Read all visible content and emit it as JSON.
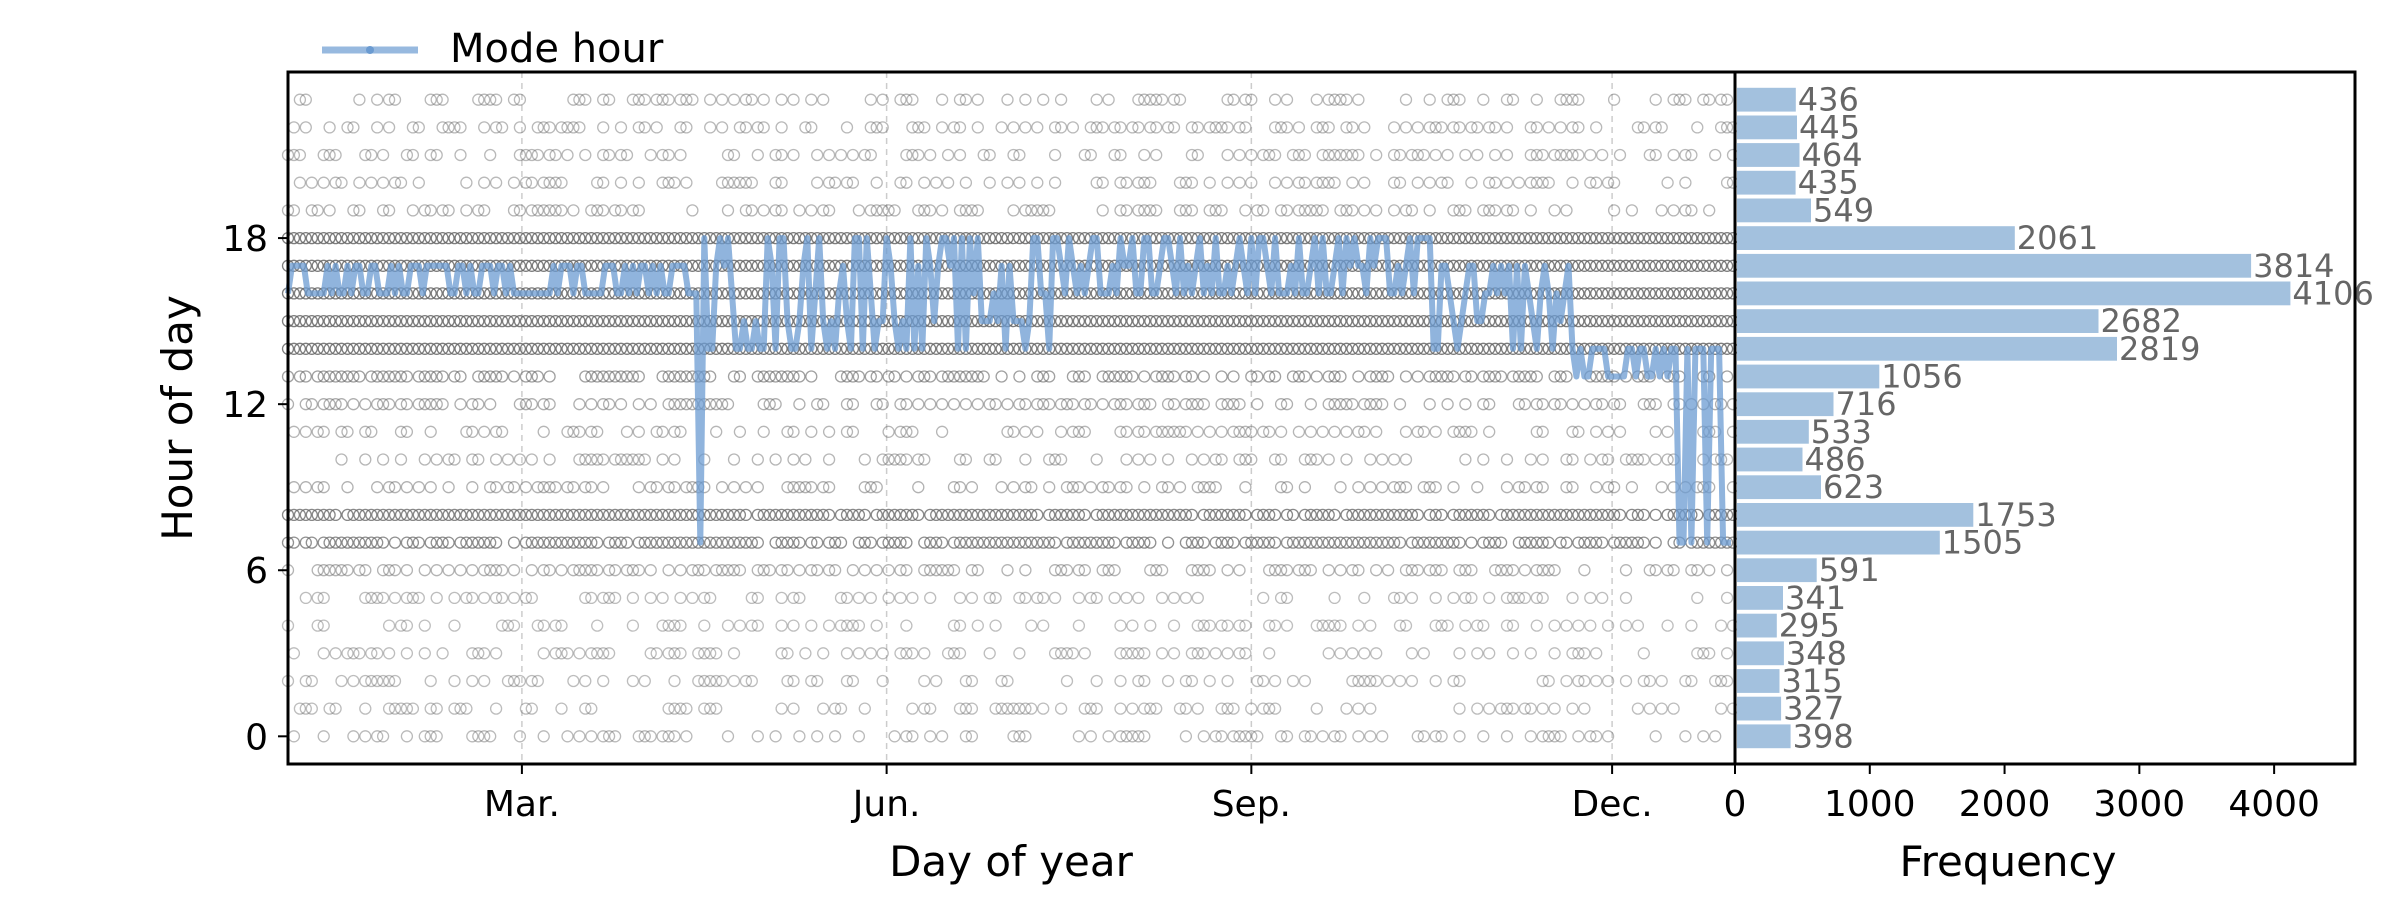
{
  "chart_data": [
    {
      "type": "scatter",
      "xlabel": "Day of year",
      "ylabel": "Hour of day",
      "xlim": [
        1,
        366
      ],
      "ylim": [
        -1,
        24
      ],
      "x_ticks": [
        {
          "label": "Mar.",
          "value": 60
        },
        {
          "label": "Jun.",
          "value": 152
        },
        {
          "label": "Sep.",
          "value": 244
        },
        {
          "label": "Dec.",
          "value": 335
        }
      ],
      "y_ticks": [
        0,
        6,
        12,
        18
      ],
      "grid": "vertical dashed at x ticks",
      "legend_position": "top-left, above plot",
      "series": [
        {
          "name": "",
          "kind": "events",
          "marker": "hollow circle",
          "color": "#666666",
          "description_rows": "hours 0-23 across all days, density ~ frequency"
        },
        {
          "name": "Mode hour",
          "kind": "line",
          "color": "#6b9bd1",
          "segments": [
            {
              "from_day": 1,
              "to_day": 85,
              "hours": [
                16,
                17
              ]
            },
            {
              "from_day": 85,
              "to_day": 103,
              "hours": [
                16,
                17
              ]
            },
            {
              "from_day": 103,
              "to_day": 106,
              "hours": [
                7,
                16
              ]
            },
            {
              "from_day": 106,
              "to_day": 195,
              "hours": [
                14,
                15,
                16,
                17,
                18
              ]
            },
            {
              "from_day": 195,
              "to_day": 290,
              "hours": [
                16,
                17,
                18
              ]
            },
            {
              "from_day": 290,
              "to_day": 326,
              "hours": [
                14,
                15,
                16,
                17
              ]
            },
            {
              "from_day": 326,
              "to_day": 352,
              "hours": [
                13,
                14
              ]
            },
            {
              "from_day": 352,
              "to_day": 366,
              "hours": [
                7,
                14
              ]
            }
          ]
        }
      ]
    },
    {
      "type": "bar",
      "orientation": "horizontal",
      "xlabel": "Frequency",
      "xlim": [
        0,
        4600
      ],
      "x_ticks": [
        0,
        1000,
        2000,
        3000,
        4000
      ],
      "categories": [
        0,
        1,
        2,
        3,
        4,
        5,
        6,
        7,
        8,
        9,
        10,
        11,
        12,
        13,
        14,
        15,
        16,
        17,
        18,
        19,
        20,
        21,
        22,
        23
      ],
      "values": [
        398,
        327,
        315,
        348,
        295,
        341,
        591,
        1505,
        1753,
        623,
        486,
        533,
        716,
        1056,
        2819,
        2682,
        4106,
        3814,
        2061,
        549,
        435,
        464,
        445,
        436
      ],
      "value_labels": [
        "398",
        "327",
        "315",
        "348",
        "295",
        "341",
        "591",
        "1505",
        "1753",
        "623",
        "486",
        "533",
        "716",
        "1056",
        "2819",
        "2682",
        "4106",
        "3814",
        "2061",
        "549",
        "435",
        "464",
        "445",
        "436"
      ],
      "color": "#a3c1de"
    }
  ],
  "legend": {
    "label": "Mode hour"
  },
  "colors": {
    "events": "#666666",
    "mode_line": "#6b9bd1",
    "bars": "#a3c1de",
    "bar_label": "#666666"
  }
}
